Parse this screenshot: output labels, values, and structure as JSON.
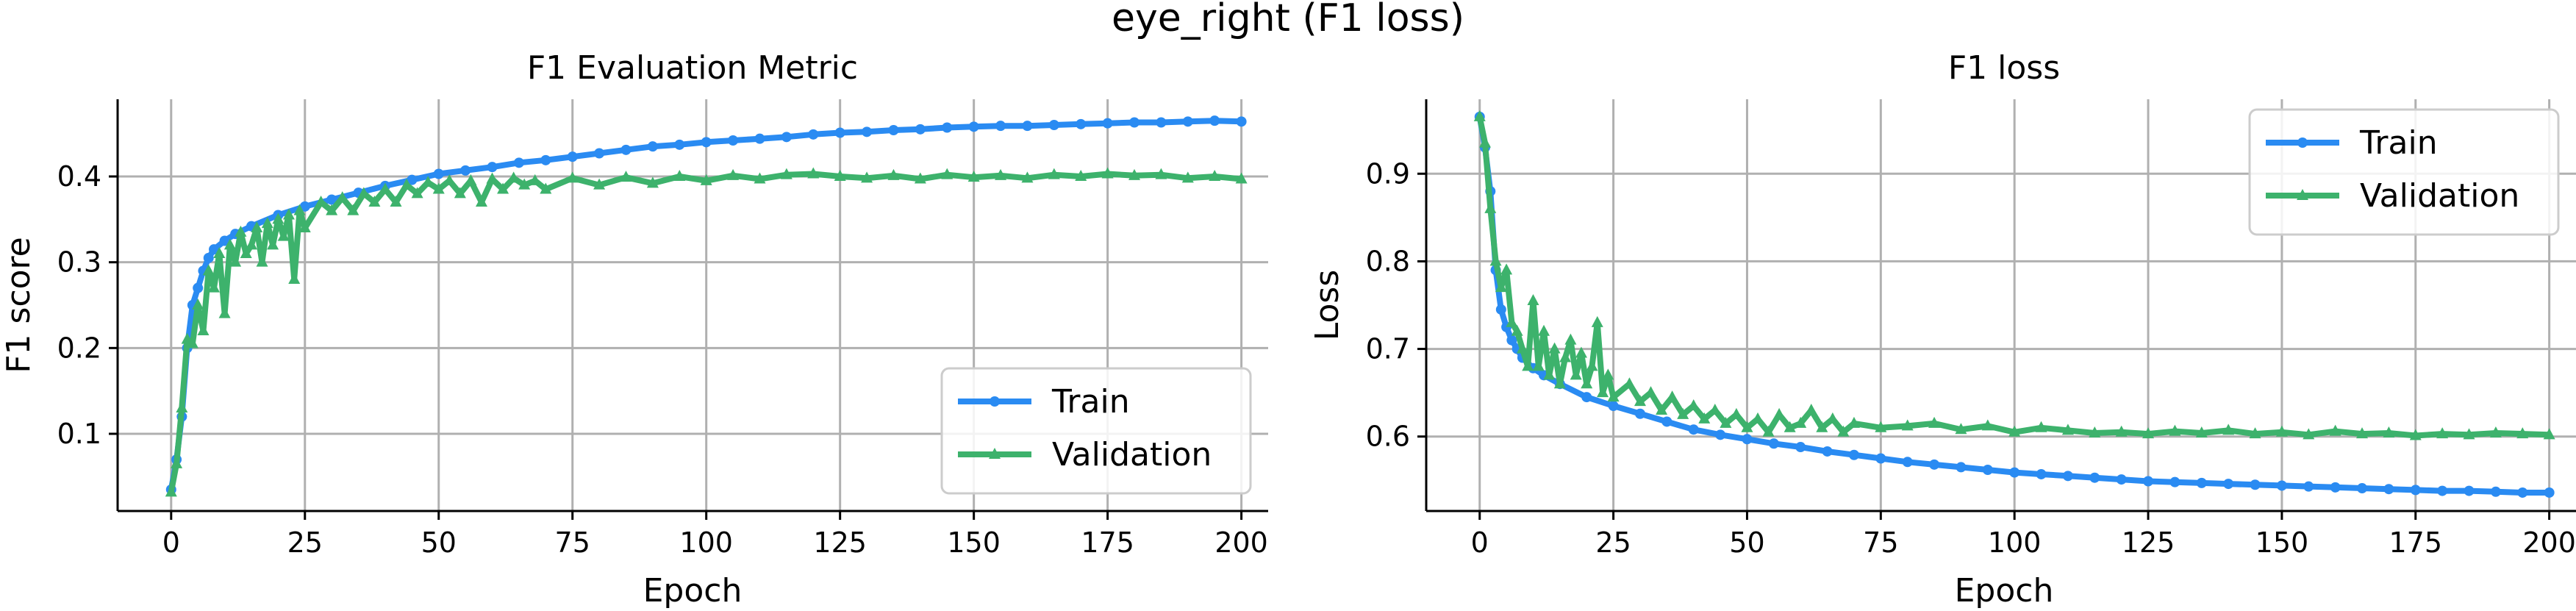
{
  "figure": {
    "suptitle": "eye_right (F1 loss)"
  },
  "chart_data": [
    {
      "type": "line",
      "title": "F1 Evaluation Metric",
      "xlabel": "Epoch",
      "ylabel": "F1 score",
      "xlim": [
        -10,
        205
      ],
      "ylim": [
        0.01,
        0.49
      ],
      "xticks": [
        0,
        25,
        50,
        75,
        100,
        125,
        150,
        175,
        200
      ],
      "yticks": [
        0.1,
        0.2,
        0.3,
        0.4
      ],
      "ytick_labels": [
        "0.1",
        "0.2",
        "0.3",
        "0.4"
      ],
      "grid": true,
      "legend_position": "lower-right",
      "series": [
        {
          "name": "Train",
          "color": "#2a8bf2",
          "marker": "circle",
          "points": [
            [
              0,
              0.035
            ],
            [
              1,
              0.07
            ],
            [
              2,
              0.12
            ],
            [
              3,
              0.2
            ],
            [
              4,
              0.25
            ],
            [
              5,
              0.27
            ],
            [
              6,
              0.29
            ],
            [
              7,
              0.305
            ],
            [
              8,
              0.315
            ],
            [
              10,
              0.325
            ],
            [
              12,
              0.333
            ],
            [
              15,
              0.342
            ],
            [
              20,
              0.355
            ],
            [
              25,
              0.365
            ],
            [
              30,
              0.373
            ],
            [
              35,
              0.381
            ],
            [
              40,
              0.389
            ],
            [
              45,
              0.396
            ],
            [
              50,
              0.403
            ],
            [
              55,
              0.407
            ],
            [
              60,
              0.411
            ],
            [
              65,
              0.416
            ],
            [
              70,
              0.419
            ],
            [
              75,
              0.423
            ],
            [
              80,
              0.427
            ],
            [
              85,
              0.431
            ],
            [
              90,
              0.435
            ],
            [
              95,
              0.437
            ],
            [
              100,
              0.44
            ],
            [
              105,
              0.442
            ],
            [
              110,
              0.444
            ],
            [
              115,
              0.446
            ],
            [
              120,
              0.449
            ],
            [
              125,
              0.451
            ],
            [
              130,
              0.452
            ],
            [
              135,
              0.454
            ],
            [
              140,
              0.455
            ],
            [
              145,
              0.457
            ],
            [
              150,
              0.458
            ],
            [
              155,
              0.459
            ],
            [
              160,
              0.459
            ],
            [
              165,
              0.46
            ],
            [
              170,
              0.461
            ],
            [
              175,
              0.462
            ],
            [
              180,
              0.463
            ],
            [
              185,
              0.463
            ],
            [
              190,
              0.464
            ],
            [
              195,
              0.465
            ],
            [
              200,
              0.464
            ]
          ]
        },
        {
          "name": "Validation",
          "color": "#3db26c",
          "marker": "tri",
          "points": [
            [
              0,
              0.032
            ],
            [
              1,
              0.065
            ],
            [
              2,
              0.13
            ],
            [
              3,
              0.21
            ],
            [
              4,
              0.205
            ],
            [
              5,
              0.25
            ],
            [
              6,
              0.22
            ],
            [
              7,
              0.29
            ],
            [
              8,
              0.27
            ],
            [
              9,
              0.31
            ],
            [
              10,
              0.24
            ],
            [
              11,
              0.32
            ],
            [
              12,
              0.3
            ],
            [
              13,
              0.335
            ],
            [
              14,
              0.31
            ],
            [
              15,
              0.32
            ],
            [
              16,
              0.34
            ],
            [
              17,
              0.3
            ],
            [
              18,
              0.345
            ],
            [
              19,
              0.32
            ],
            [
              20,
              0.35
            ],
            [
              21,
              0.33
            ],
            [
              22,
              0.355
            ],
            [
              23,
              0.28
            ],
            [
              24,
              0.36
            ],
            [
              25,
              0.34
            ],
            [
              28,
              0.37
            ],
            [
              30,
              0.36
            ],
            [
              32,
              0.375
            ],
            [
              34,
              0.36
            ],
            [
              36,
              0.38
            ],
            [
              38,
              0.37
            ],
            [
              40,
              0.385
            ],
            [
              42,
              0.37
            ],
            [
              44,
              0.39
            ],
            [
              46,
              0.38
            ],
            [
              48,
              0.393
            ],
            [
              50,
              0.385
            ],
            [
              52,
              0.395
            ],
            [
              54,
              0.38
            ],
            [
              56,
              0.395
            ],
            [
              58,
              0.37
            ],
            [
              60,
              0.397
            ],
            [
              62,
              0.385
            ],
            [
              64,
              0.398
            ],
            [
              66,
              0.39
            ],
            [
              68,
              0.395
            ],
            [
              70,
              0.385
            ],
            [
              75,
              0.398
            ],
            [
              80,
              0.39
            ],
            [
              85,
              0.399
            ],
            [
              90,
              0.392
            ],
            [
              95,
              0.4
            ],
            [
              100,
              0.395
            ],
            [
              105,
              0.401
            ],
            [
              110,
              0.397
            ],
            [
              115,
              0.402
            ],
            [
              120,
              0.403
            ],
            [
              125,
              0.4
            ],
            [
              130,
              0.398
            ],
            [
              135,
              0.401
            ],
            [
              140,
              0.397
            ],
            [
              145,
              0.402
            ],
            [
              150,
              0.399
            ],
            [
              155,
              0.401
            ],
            [
              160,
              0.398
            ],
            [
              165,
              0.402
            ],
            [
              170,
              0.4
            ],
            [
              175,
              0.403
            ],
            [
              180,
              0.401
            ],
            [
              185,
              0.402
            ],
            [
              190,
              0.398
            ],
            [
              195,
              0.4
            ],
            [
              200,
              0.397
            ]
          ]
        }
      ]
    },
    {
      "type": "line",
      "title": "F1 loss",
      "xlabel": "Epoch",
      "ylabel": "Loss",
      "xlim": [
        -10,
        205
      ],
      "ylim": [
        0.515,
        0.985
      ],
      "xticks": [
        0,
        25,
        50,
        75,
        100,
        125,
        150,
        175,
        200
      ],
      "yticks": [
        0.6,
        0.7,
        0.8,
        0.9
      ],
      "ytick_labels": [
        "0.6",
        "0.7",
        "0.8",
        "0.9"
      ],
      "grid": true,
      "legend_position": "upper-right",
      "series": [
        {
          "name": "Train",
          "color": "#2a8bf2",
          "marker": "circle",
          "points": [
            [
              0,
              0.965
            ],
            [
              1,
              0.93
            ],
            [
              2,
              0.88
            ],
            [
              3,
              0.79
            ],
            [
              4,
              0.745
            ],
            [
              5,
              0.725
            ],
            [
              6,
              0.71
            ],
            [
              7,
              0.7
            ],
            [
              8,
              0.69
            ],
            [
              10,
              0.678
            ],
            [
              12,
              0.67
            ],
            [
              15,
              0.66
            ],
            [
              20,
              0.645
            ],
            [
              25,
              0.635
            ],
            [
              30,
              0.626
            ],
            [
              35,
              0.617
            ],
            [
              40,
              0.608
            ],
            [
              45,
              0.602
            ],
            [
              50,
              0.597
            ],
            [
              55,
              0.592
            ],
            [
              60,
              0.588
            ],
            [
              65,
              0.583
            ],
            [
              70,
              0.579
            ],
            [
              75,
              0.575
            ],
            [
              80,
              0.571
            ],
            [
              85,
              0.568
            ],
            [
              90,
              0.565
            ],
            [
              95,
              0.562
            ],
            [
              100,
              0.559
            ],
            [
              105,
              0.557
            ],
            [
              110,
              0.555
            ],
            [
              115,
              0.553
            ],
            [
              120,
              0.551
            ],
            [
              125,
              0.549
            ],
            [
              130,
              0.548
            ],
            [
              135,
              0.547
            ],
            [
              140,
              0.546
            ],
            [
              145,
              0.545
            ],
            [
              150,
              0.544
            ],
            [
              155,
              0.543
            ],
            [
              160,
              0.542
            ],
            [
              165,
              0.541
            ],
            [
              170,
              0.54
            ],
            [
              175,
              0.539
            ],
            [
              180,
              0.538
            ],
            [
              185,
              0.538
            ],
            [
              190,
              0.537
            ],
            [
              195,
              0.536
            ],
            [
              200,
              0.536
            ]
          ]
        },
        {
          "name": "Validation",
          "color": "#3db26c",
          "marker": "tri",
          "points": [
            [
              0,
              0.965
            ],
            [
              1,
              0.935
            ],
            [
              2,
              0.86
            ],
            [
              3,
              0.8
            ],
            [
              4,
              0.77
            ],
            [
              5,
              0.79
            ],
            [
              6,
              0.73
            ],
            [
              7,
              0.72
            ],
            [
              8,
              0.7
            ],
            [
              9,
              0.68
            ],
            [
              10,
              0.755
            ],
            [
              11,
              0.68
            ],
            [
              12,
              0.72
            ],
            [
              13,
              0.67
            ],
            [
              14,
              0.7
            ],
            [
              15,
              0.66
            ],
            [
              16,
              0.69
            ],
            [
              17,
              0.71
            ],
            [
              18,
              0.67
            ],
            [
              19,
              0.695
            ],
            [
              20,
              0.66
            ],
            [
              21,
              0.68
            ],
            [
              22,
              0.73
            ],
            [
              23,
              0.65
            ],
            [
              24,
              0.67
            ],
            [
              25,
              0.645
            ],
            [
              28,
              0.66
            ],
            [
              30,
              0.64
            ],
            [
              32,
              0.65
            ],
            [
              34,
              0.63
            ],
            [
              36,
              0.645
            ],
            [
              38,
              0.625
            ],
            [
              40,
              0.635
            ],
            [
              42,
              0.62
            ],
            [
              44,
              0.63
            ],
            [
              46,
              0.615
            ],
            [
              48,
              0.625
            ],
            [
              50,
              0.61
            ],
            [
              52,
              0.62
            ],
            [
              54,
              0.605
            ],
            [
              56,
              0.625
            ],
            [
              58,
              0.61
            ],
            [
              60,
              0.615
            ],
            [
              62,
              0.63
            ],
            [
              64,
              0.61
            ],
            [
              66,
              0.62
            ],
            [
              68,
              0.605
            ],
            [
              70,
              0.615
            ],
            [
              75,
              0.61
            ],
            [
              80,
              0.612
            ],
            [
              85,
              0.615
            ],
            [
              90,
              0.608
            ],
            [
              95,
              0.612
            ],
            [
              100,
              0.605
            ],
            [
              105,
              0.61
            ],
            [
              110,
              0.607
            ],
            [
              115,
              0.604
            ],
            [
              120,
              0.605
            ],
            [
              125,
              0.603
            ],
            [
              130,
              0.606
            ],
            [
              135,
              0.604
            ],
            [
              140,
              0.607
            ],
            [
              145,
              0.603
            ],
            [
              150,
              0.605
            ],
            [
              155,
              0.602
            ],
            [
              160,
              0.606
            ],
            [
              165,
              0.603
            ],
            [
              170,
              0.604
            ],
            [
              175,
              0.601
            ],
            [
              180,
              0.603
            ],
            [
              185,
              0.602
            ],
            [
              190,
              0.604
            ],
            [
              195,
              0.603
            ],
            [
              200,
              0.602
            ]
          ]
        }
      ]
    }
  ]
}
